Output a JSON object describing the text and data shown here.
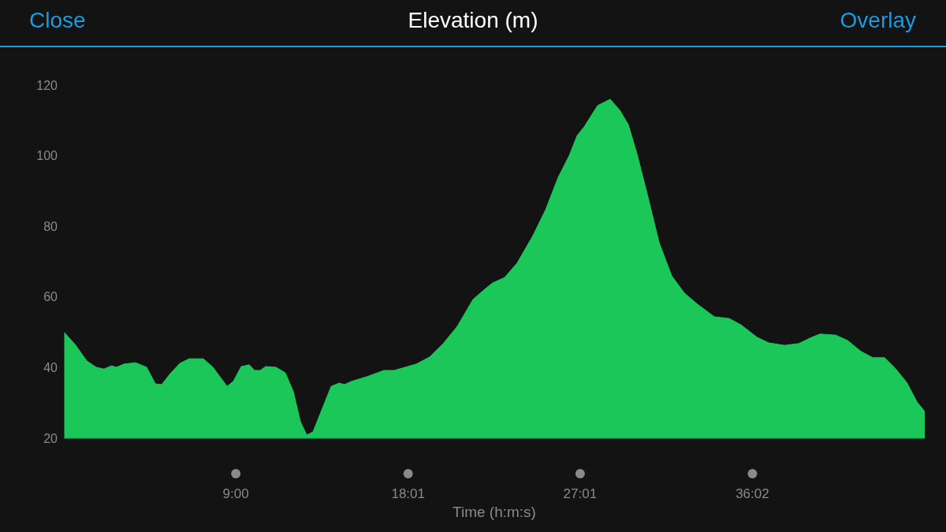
{
  "chart_data": {
    "type": "area",
    "title": "Elevation (m)",
    "xlabel": "Time (h:m:s)",
    "annotations": [
      "Close",
      "Overlay"
    ],
    "x": [
      0,
      0.58,
      1.2,
      1.69,
      2.1,
      2.48,
      2.76,
      3.14,
      3.75,
      4.33,
      4.79,
      5.12,
      5.57,
      6.07,
      6.56,
      7.3,
      7.8,
      8.54,
      8.87,
      9.28,
      9.7,
      9.98,
      10.27,
      10.56,
      11.1,
      11.59,
      12.01,
      12.38,
      12.71,
      13.04,
      13.37,
      13.99,
      14.4,
      14.69,
      15.06,
      15.84,
      16.75,
      17.29,
      18.44,
      19.14,
      19.85,
      20.59,
      21.41,
      22.07,
      22.44,
      22.69,
      23.06,
      23.72,
      24.55,
      25.21,
      25.87,
      26.45,
      26.86,
      27.23,
      27.93,
      28.59,
      29.09,
      29.54,
      30,
      30.57,
      31.15,
      31.81,
      32.47,
      33.17,
      34.04,
      34.82,
      35.44,
      36.27,
      36.89,
      37.71,
      38.45,
      39.15,
      39.57,
      40.39,
      41.01,
      41.71,
      42.33,
      42.95,
      43.49,
      44.11,
      44.64,
      45.05
    ],
    "values": [
      50.1,
      46.6,
      41.9,
      40.1,
      39.6,
      40.5,
      40.1,
      41,
      41.4,
      40.1,
      35.4,
      35.2,
      38.3,
      41.2,
      42.5,
      42.5,
      40.1,
      34.7,
      36.1,
      40.3,
      40.8,
      39.2,
      39.2,
      40.3,
      40.1,
      38.5,
      33.2,
      24.7,
      20.9,
      21.8,
      26.3,
      34.7,
      35.6,
      35.2,
      36.1,
      37.4,
      39.2,
      39.2,
      41,
      43,
      46.8,
      51.7,
      59.3,
      62.4,
      64,
      64.6,
      65.5,
      69.6,
      77.4,
      84.7,
      93.9,
      100.1,
      105.7,
      108.2,
      114.2,
      116,
      112.9,
      108.8,
      100.4,
      88.3,
      75.4,
      66,
      61.1,
      57.9,
      54.4,
      53.9,
      52.1,
      48.6,
      47,
      46.3,
      46.8,
      48.6,
      49.5,
      49.2,
      47.7,
      44.6,
      42.8,
      42.8,
      39.9,
      35.8,
      30.3,
      27.6
    ],
    "color": "#1cc75a",
    "xlim": [
      0,
      45.05
    ],
    "xticks": [
      {
        "value": 9,
        "label": "9:00"
      },
      {
        "value": 18.017,
        "label": "18:01"
      },
      {
        "value": 27.017,
        "label": "27:01"
      },
      {
        "value": 36.033,
        "label": "36:02"
      }
    ],
    "ylim": [
      20,
      120
    ],
    "yticks": [
      20,
      40,
      60,
      80,
      100,
      120
    ],
    "grid": false,
    "legend": false
  }
}
